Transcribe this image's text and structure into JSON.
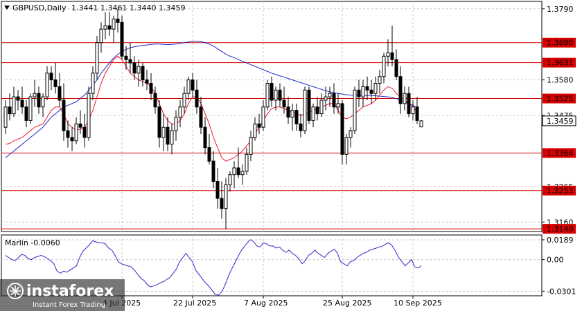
{
  "header": {
    "symbol": "GBPUSD,Daily",
    "ohlc": "1.3441 1.3461 1.3440 1.3459"
  },
  "oscillator": {
    "label": "Marlin -0.0060",
    "ticks": [
      "0.0189",
      "0.00",
      "-0.0301"
    ],
    "tick_values": [
      0.0189,
      0.0,
      -0.0301
    ],
    "values": [
      0.004,
      0.002,
      0.0,
      -0.001,
      0.002,
      0.005,
      0.004,
      0.001,
      0.0,
      0.002,
      0.003,
      0.004,
      0.003,
      0.001,
      -0.001,
      -0.004,
      -0.011,
      -0.013,
      -0.011,
      -0.012,
      -0.01,
      -0.008,
      -0.006,
      0.002,
      0.008,
      0.011,
      0.014,
      0.018,
      0.017,
      0.016,
      0.016,
      0.015,
      0.011,
      0.009,
      0.004,
      -0.002,
      -0.004,
      -0.005,
      -0.006,
      -0.007,
      -0.01,
      -0.014,
      -0.018,
      -0.02,
      -0.024,
      -0.026,
      -0.025,
      -0.024,
      -0.022,
      -0.021,
      -0.019,
      -0.017,
      -0.013,
      -0.009,
      -0.002,
      0.002,
      0.006,
      0.002,
      -0.002,
      -0.01,
      -0.014,
      -0.018,
      -0.022,
      -0.025,
      -0.029,
      -0.033,
      -0.034,
      -0.031,
      -0.025,
      -0.017,
      -0.01,
      -0.004,
      0.002,
      0.008,
      0.012,
      0.016,
      0.019,
      0.017,
      0.013,
      0.012,
      0.016,
      0.015,
      0.013,
      0.013,
      0.011,
      0.012,
      0.009,
      0.007,
      0.009,
      0.006,
      0.004,
      0.001,
      -0.004,
      -0.001,
      0.004,
      0.006,
      0.009,
      0.006,
      0.004,
      0.002,
      0.006,
      0.008,
      0.01,
      0.006,
      -0.002,
      -0.004,
      -0.006,
      -0.002,
      -0.001,
      0.002,
      0.004,
      0.006,
      0.007,
      0.009,
      0.01,
      0.011,
      0.012,
      0.013,
      0.015,
      0.016,
      0.013,
      0.008,
      0.002,
      -0.002,
      -0.006,
      -0.003,
      0.0,
      -0.007,
      -0.008,
      -0.006
    ],
    "line_color": "#3a20c8"
  },
  "price_axis": {
    "ticks": [
      "1.3790",
      "1.3580",
      "1.3475",
      "1.3265",
      "1.3160"
    ],
    "tick_values": [
      1.379,
      1.358,
      1.3475,
      1.3265,
      1.316
    ],
    "current_price": "1.3459",
    "current_price_value": 1.3459
  },
  "levels": [
    {
      "label": "1.3690",
      "value": 1.369
    },
    {
      "label": "1.3631",
      "value": 1.3631
    },
    {
      "label": "1.3525",
      "value": 1.3525
    },
    {
      "label": "1.3364",
      "value": 1.3364
    },
    {
      "label": "1.3253",
      "value": 1.3253
    },
    {
      "label": "1.3140",
      "value": 1.314
    }
  ],
  "time_axis": {
    "labels": [
      "4 Jul 2025",
      "22 Jul 2025",
      "7 Aug 2025",
      "25 Aug 2025",
      "10 Sep 2025"
    ],
    "label_bar_index": [
      28,
      45,
      62,
      81,
      98
    ]
  },
  "colors": {
    "level_line": "#d60000",
    "level_label_bg": "#d60000",
    "ma_fast": "#e8192c",
    "ma_slow": "#1b2acc",
    "candle": "#000000",
    "grid": "#c8c8c8"
  },
  "watermark": {
    "brand": "instaforex",
    "tagline": "Instant Forex Trading"
  },
  "chart_data": {
    "type": "candlestick",
    "symbol": "GBPUSD",
    "timeframe": "Daily",
    "ylim": [
      1.3132,
      1.3812
    ],
    "fields": [
      "open",
      "high",
      "low",
      "close"
    ],
    "candles": [
      [
        1.344,
        1.352,
        1.342,
        1.35
      ],
      [
        1.35,
        1.354,
        1.346,
        1.348
      ],
      [
        1.348,
        1.356,
        1.347,
        1.353
      ],
      [
        1.353,
        1.355,
        1.349,
        1.352
      ],
      [
        1.352,
        1.356,
        1.348,
        1.35
      ],
      [
        1.35,
        1.352,
        1.344,
        1.346
      ],
      [
        1.346,
        1.354,
        1.345,
        1.353
      ],
      [
        1.353,
        1.358,
        1.35,
        1.354
      ],
      [
        1.354,
        1.356,
        1.348,
        1.35
      ],
      [
        1.35,
        1.354,
        1.347,
        1.353
      ],
      [
        1.353,
        1.362,
        1.352,
        1.36
      ],
      [
        1.36,
        1.362,
        1.355,
        1.358
      ],
      [
        1.358,
        1.363,
        1.354,
        1.356
      ],
      [
        1.356,
        1.36,
        1.35,
        1.352
      ],
      [
        1.352,
        1.357,
        1.34,
        1.343
      ],
      [
        1.343,
        1.346,
        1.338,
        1.341
      ],
      [
        1.341,
        1.344,
        1.337,
        1.34
      ],
      [
        1.34,
        1.347,
        1.339,
        1.345
      ],
      [
        1.345,
        1.349,
        1.342,
        1.344
      ],
      [
        1.344,
        1.348,
        1.338,
        1.341
      ],
      [
        1.341,
        1.356,
        1.34,
        1.354
      ],
      [
        1.354,
        1.362,
        1.352,
        1.36
      ],
      [
        1.36,
        1.371,
        1.358,
        1.369
      ],
      [
        1.369,
        1.375,
        1.366,
        1.373
      ],
      [
        1.373,
        1.378,
        1.37,
        1.374
      ],
      [
        1.374,
        1.378,
        1.371,
        1.373
      ],
      [
        1.373,
        1.377,
        1.369,
        1.376
      ],
      [
        1.376,
        1.379,
        1.372,
        1.375
      ],
      [
        1.375,
        1.377,
        1.364,
        1.365
      ],
      [
        1.365,
        1.368,
        1.361,
        1.364
      ],
      [
        1.364,
        1.369,
        1.36,
        1.363
      ],
      [
        1.363,
        1.365,
        1.358,
        1.36
      ],
      [
        1.36,
        1.364,
        1.356,
        1.362
      ],
      [
        1.362,
        1.363,
        1.356,
        1.358
      ],
      [
        1.358,
        1.361,
        1.355,
        1.357
      ],
      [
        1.357,
        1.36,
        1.352,
        1.354
      ],
      [
        1.354,
        1.356,
        1.348,
        1.35
      ],
      [
        1.35,
        1.352,
        1.338,
        1.341
      ],
      [
        1.341,
        1.348,
        1.337,
        1.344
      ],
      [
        1.344,
        1.347,
        1.337,
        1.339
      ],
      [
        1.339,
        1.345,
        1.336,
        1.343
      ],
      [
        1.343,
        1.349,
        1.34,
        1.347
      ],
      [
        1.347,
        1.352,
        1.344,
        1.35
      ],
      [
        1.35,
        1.356,
        1.348,
        1.354
      ],
      [
        1.354,
        1.359,
        1.352,
        1.358
      ],
      [
        1.358,
        1.36,
        1.353,
        1.355
      ],
      [
        1.355,
        1.358,
        1.348,
        1.35
      ],
      [
        1.35,
        1.353,
        1.342,
        1.344
      ],
      [
        1.344,
        1.347,
        1.336,
        1.338
      ],
      [
        1.338,
        1.342,
        1.333,
        1.334
      ],
      [
        1.334,
        1.337,
        1.326,
        1.328
      ],
      [
        1.328,
        1.332,
        1.32,
        1.323
      ],
      [
        1.323,
        1.328,
        1.317,
        1.32
      ],
      [
        1.32,
        1.329,
        1.314,
        1.327
      ],
      [
        1.327,
        1.331,
        1.325,
        1.33
      ],
      [
        1.33,
        1.334,
        1.326,
        1.332
      ],
      [
        1.332,
        1.338,
        1.329,
        1.33
      ],
      [
        1.33,
        1.333,
        1.327,
        1.331
      ],
      [
        1.331,
        1.338,
        1.33,
        1.336
      ],
      [
        1.336,
        1.343,
        1.334,
        1.341
      ],
      [
        1.341,
        1.347,
        1.34,
        1.345
      ],
      [
        1.345,
        1.348,
        1.342,
        1.344
      ],
      [
        1.344,
        1.352,
        1.343,
        1.35
      ],
      [
        1.35,
        1.358,
        1.349,
        1.357
      ],
      [
        1.357,
        1.359,
        1.35,
        1.352
      ],
      [
        1.352,
        1.356,
        1.349,
        1.355
      ],
      [
        1.355,
        1.357,
        1.35,
        1.352
      ],
      [
        1.352,
        1.356,
        1.348,
        1.35
      ],
      [
        1.35,
        1.353,
        1.345,
        1.347
      ],
      [
        1.347,
        1.351,
        1.343,
        1.349
      ],
      [
        1.349,
        1.351,
        1.343,
        1.345
      ],
      [
        1.345,
        1.348,
        1.341,
        1.343
      ],
      [
        1.343,
        1.356,
        1.342,
        1.355
      ],
      [
        1.355,
        1.356,
        1.345,
        1.346
      ],
      [
        1.346,
        1.351,
        1.344,
        1.35
      ],
      [
        1.35,
        1.353,
        1.346,
        1.348
      ],
      [
        1.348,
        1.354,
        1.347,
        1.352
      ],
      [
        1.352,
        1.356,
        1.349,
        1.353
      ],
      [
        1.353,
        1.356,
        1.35,
        1.354
      ],
      [
        1.354,
        1.357,
        1.348,
        1.35
      ],
      [
        1.35,
        1.354,
        1.348,
        1.351
      ],
      [
        1.351,
        1.352,
        1.333,
        1.336
      ],
      [
        1.336,
        1.342,
        1.333,
        1.341
      ],
      [
        1.341,
        1.344,
        1.338,
        1.343
      ],
      [
        1.343,
        1.356,
        1.342,
        1.355
      ],
      [
        1.355,
        1.358,
        1.35,
        1.353
      ],
      [
        1.353,
        1.358,
        1.35,
        1.356
      ],
      [
        1.356,
        1.359,
        1.352,
        1.355
      ],
      [
        1.355,
        1.358,
        1.351,
        1.354
      ],
      [
        1.354,
        1.359,
        1.352,
        1.357
      ],
      [
        1.357,
        1.361,
        1.354,
        1.359
      ],
      [
        1.359,
        1.366,
        1.357,
        1.365
      ],
      [
        1.365,
        1.37,
        1.362,
        1.366
      ],
      [
        1.366,
        1.374,
        1.362,
        1.364
      ],
      [
        1.364,
        1.367,
        1.358,
        1.359
      ],
      [
        1.359,
        1.362,
        1.348,
        1.351
      ],
      [
        1.351,
        1.356,
        1.349,
        1.354
      ],
      [
        1.354,
        1.356,
        1.347,
        1.348
      ],
      [
        1.348,
        1.352,
        1.346,
        1.35
      ],
      [
        1.35,
        1.353,
        1.345,
        1.346
      ],
      [
        1.3441,
        1.3461,
        1.344,
        1.3459
      ]
    ],
    "ma_fast": [
      1.339,
      1.3392,
      1.34,
      1.3405,
      1.341,
      1.342,
      1.343,
      1.344,
      1.3445,
      1.345,
      1.347,
      1.349,
      1.35,
      1.35,
      1.348,
      1.345,
      1.344,
      1.343,
      1.3435,
      1.344,
      1.346,
      1.349,
      1.353,
      1.357,
      1.36,
      1.362,
      1.364,
      1.365,
      1.364,
      1.362,
      1.36,
      1.359,
      1.358,
      1.3575,
      1.357,
      1.356,
      1.354,
      1.351,
      1.348,
      1.346,
      1.345,
      1.345,
      1.346,
      1.348,
      1.351,
      1.353,
      1.353,
      1.351,
      1.348,
      1.345,
      1.341,
      1.338,
      1.335,
      1.334,
      1.3345,
      1.335,
      1.336,
      1.337,
      1.3385,
      1.34,
      1.342,
      1.344,
      1.346,
      1.348,
      1.3495,
      1.35,
      1.35,
      1.3495,
      1.349,
      1.3485,
      1.348,
      1.3475,
      1.348,
      1.3485,
      1.349,
      1.3495,
      1.35,
      1.3505,
      1.351,
      1.351,
      1.349,
      1.347,
      1.3465,
      1.347,
      1.348,
      1.349,
      1.35,
      1.3505,
      1.351,
      1.352,
      1.3535,
      1.355,
      1.356,
      1.3555,
      1.354,
      1.353,
      1.352,
      1.351,
      1.35,
      1.3485
    ],
    "ma_slow": [
      1.335,
      1.336,
      1.337,
      1.338,
      1.339,
      1.34,
      1.341,
      1.342,
      1.343,
      1.344,
      1.3455,
      1.347,
      1.348,
      1.349,
      1.35,
      1.3505,
      1.351,
      1.3515,
      1.3525,
      1.3535,
      1.355,
      1.3565,
      1.358,
      1.36,
      1.3615,
      1.363,
      1.3645,
      1.3655,
      1.3665,
      1.367,
      1.3675,
      1.3678,
      1.368,
      1.3682,
      1.3683,
      1.3685,
      1.3686,
      1.3686,
      1.3685,
      1.3684,
      1.3685,
      1.3686,
      1.3688,
      1.369,
      1.3692,
      1.3694,
      1.3694,
      1.3693,
      1.369,
      1.3686,
      1.368,
      1.3672,
      1.3664,
      1.3656,
      1.365,
      1.3646,
      1.364,
      1.3635,
      1.363,
      1.3625,
      1.362,
      1.3615,
      1.361,
      1.3605,
      1.36,
      1.3596,
      1.3592,
      1.3588,
      1.3584,
      1.358,
      1.3576,
      1.3572,
      1.3568,
      1.3564,
      1.356,
      1.3556,
      1.3552,
      1.3548,
      1.3545,
      1.3542,
      1.354,
      1.3538,
      1.3536,
      1.3535,
      1.3535,
      1.3534,
      1.3534,
      1.3534,
      1.3534,
      1.3533,
      1.3532,
      1.3531,
      1.353,
      1.3528,
      1.3525,
      1.352,
      1.3515,
      1.351,
      1.3505,
      1.3498
    ],
    "levels": [
      1.369,
      1.3631,
      1.3525,
      1.3364,
      1.3253,
      1.314
    ]
  }
}
